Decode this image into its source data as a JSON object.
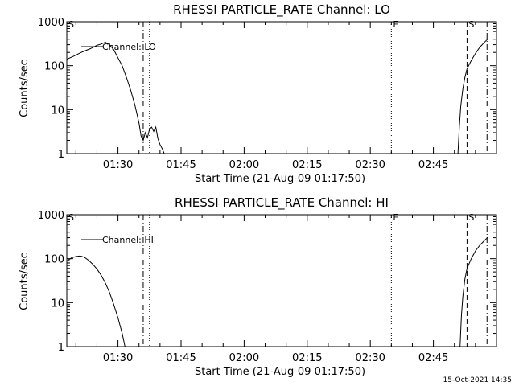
{
  "timestamp": "15-Oct-2021 14:35",
  "chart_data": [
    {
      "type": "line",
      "title": "RHESSI PARTICLE_RATE Channel: LO",
      "xlabel": "Start Time (21-Aug-09 01:17:50)",
      "ylabel": "Counts/sec",
      "yscale": "log",
      "ylim": [
        1,
        1000
      ],
      "ytick_labels": [
        "1",
        "10",
        "100",
        "1000"
      ],
      "xtick_labels": [
        "01:30",
        "01:45",
        "02:00",
        "02:15",
        "02:30",
        "02:45"
      ],
      "xlim": [
        "01:17:50",
        "03:00:00"
      ],
      "legend": {
        "entries": [
          "Channel: LO"
        ],
        "placement": "top-left"
      },
      "markers": [
        {
          "label": "E",
          "time": "02:35:00",
          "style": "dotted"
        },
        {
          "label": "S",
          "time": "02:53:00",
          "style": "dashed"
        },
        {
          "label": "",
          "time": "01:36:00",
          "style": "dash-dot"
        },
        {
          "label": "",
          "time": "01:37:30",
          "style": "dotted"
        },
        {
          "label": "",
          "time": "02:57:45",
          "style": "dash-dot"
        }
      ],
      "corner_label": "S",
      "series": [
        {
          "name": "Channel: LO",
          "segments": [
            [
              [
                "01:17:50",
                140
              ],
              [
                "01:19:30",
                165
              ],
              [
                "01:21:30",
                205
              ],
              [
                "01:23:30",
                245
              ],
              [
                "01:25:00",
                290
              ],
              [
                "01:26:00",
                310
              ],
              [
                "01:27:00",
                340
              ],
              [
                "01:28:00",
                300
              ],
              [
                "01:29:00",
                230
              ],
              [
                "01:30:00",
                150
              ],
              [
                "01:31:00",
                100
              ],
              [
                "01:32:00",
                55
              ],
              [
                "01:33:00",
                28
              ],
              [
                "01:34:00",
                13
              ],
              [
                "01:35:00",
                5
              ],
              [
                "01:35:30",
                2.5
              ],
              [
                "01:36:00",
                2
              ],
              [
                "01:36:30",
                3
              ],
              [
                "01:37:00",
                2.3
              ],
              [
                "01:37:30",
                3.6
              ],
              [
                "01:38:00",
                4
              ],
              [
                "01:38:30",
                3.2
              ],
              [
                "01:39:00",
                4
              ],
              [
                "01:39:30",
                2.2
              ],
              [
                "01:40:00",
                1.6
              ],
              [
                "01:40:30",
                1.3
              ],
              [
                "01:41:00",
                1
              ]
            ],
            [
              [
                "02:50:50",
                1
              ],
              [
                "02:51:10",
                4
              ],
              [
                "02:51:30",
                12
              ],
              [
                "02:52:00",
                30
              ],
              [
                "02:52:30",
                55
              ],
              [
                "02:53:00",
                85
              ],
              [
                "02:54:00",
                130
              ],
              [
                "02:55:00",
                190
              ],
              [
                "02:56:00",
                260
              ],
              [
                "02:57:00",
                330
              ],
              [
                "02:58:00",
                410
              ]
            ]
          ]
        }
      ]
    },
    {
      "type": "line",
      "title": "RHESSI PARTICLE_RATE Channel: HI",
      "xlabel": "Start Time (21-Aug-09 01:17:50)",
      "ylabel": "Counts/sec",
      "yscale": "log",
      "ylim": [
        1,
        1000
      ],
      "ytick_labels": [
        "1",
        "10",
        "100",
        "1000"
      ],
      "xtick_labels": [
        "01:30",
        "01:45",
        "02:00",
        "02:15",
        "02:30",
        "02:45"
      ],
      "xlim": [
        "01:17:50",
        "03:00:00"
      ],
      "legend": {
        "entries": [
          "Channel: HI"
        ],
        "placement": "top-left"
      },
      "markers": [
        {
          "label": "E",
          "time": "02:35:00",
          "style": "dotted"
        },
        {
          "label": "S",
          "time": "02:53:00",
          "style": "dashed"
        },
        {
          "label": "",
          "time": "01:36:00",
          "style": "dash-dot"
        },
        {
          "label": "",
          "time": "01:37:30",
          "style": "dotted"
        },
        {
          "label": "",
          "time": "02:57:45",
          "style": "dash-dot"
        }
      ],
      "corner_label": "S",
      "series": [
        {
          "name": "Channel: HI",
          "segments": [
            [
              [
                "01:17:50",
                88
              ],
              [
                "01:19:00",
                105
              ],
              [
                "01:20:00",
                112
              ],
              [
                "01:21:00",
                115
              ],
              [
                "01:22:00",
                108
              ],
              [
                "01:23:00",
                92
              ],
              [
                "01:24:00",
                75
              ],
              [
                "01:25:00",
                58
              ],
              [
                "01:26:00",
                42
              ],
              [
                "01:27:00",
                28
              ],
              [
                "01:28:00",
                17
              ],
              [
                "01:29:00",
                9
              ],
              [
                "01:30:00",
                4.5
              ],
              [
                "01:31:00",
                2
              ],
              [
                "01:31:40",
                1
              ]
            ],
            [
              [
                "02:51:20",
                1
              ],
              [
                "02:51:40",
                5
              ],
              [
                "02:52:00",
                14
              ],
              [
                "02:52:30",
                35
              ],
              [
                "02:53:00",
                60
              ],
              [
                "02:54:00",
                100
              ],
              [
                "02:55:00",
                150
              ],
              [
                "02:56:00",
                200
              ],
              [
                "02:57:00",
                250
              ],
              [
                "02:58:00",
                310
              ]
            ]
          ]
        }
      ]
    }
  ]
}
